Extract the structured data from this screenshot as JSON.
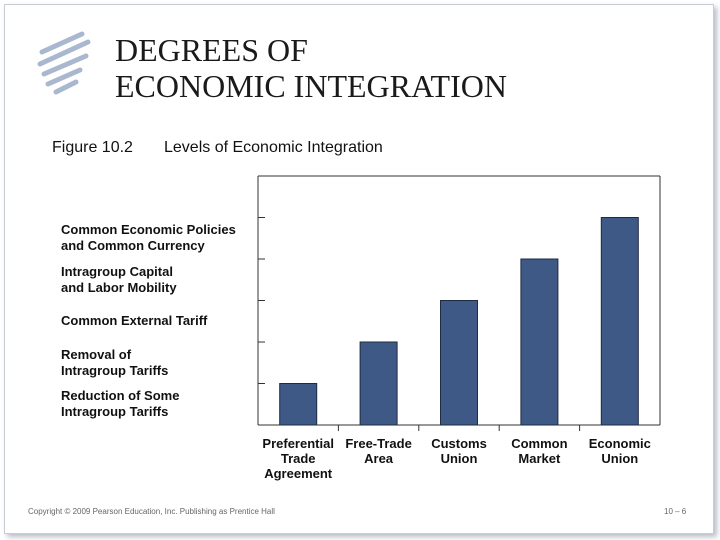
{
  "header": {
    "title": "DEGREES OF\nECONOMIC INTEGRATION"
  },
  "figure": {
    "number": "Figure 10.2",
    "caption": "Levels of Economic Integration"
  },
  "chart_data": {
    "type": "bar",
    "categories": [
      "Preferential\nTrade\nAgreement",
      "Free-Trade\nArea",
      "Customs\nUnion",
      "Common\nMarket",
      "Economic\nUnion"
    ],
    "values": [
      1,
      2,
      3,
      4,
      5
    ],
    "color": "#3e5985",
    "ylim": [
      0,
      6
    ],
    "yticks": [
      {
        "value": 1,
        "label": "Reduction of Some\nIntragroup Tariffs"
      },
      {
        "value": 2,
        "label": "Removal of\nIntragroup Tariffs"
      },
      {
        "value": 3,
        "label": "Common External Tariff"
      },
      {
        "value": 4,
        "label": "Intragroup Capital\nand Labor Mobility"
      },
      {
        "value": 5,
        "label": "Common Economic Policies\nand Common Currency"
      }
    ]
  },
  "footer": {
    "copyright": "Copyright © 2009 Pearson Education, Inc. Publishing as Prentice Hall",
    "page": "10 – 6"
  }
}
